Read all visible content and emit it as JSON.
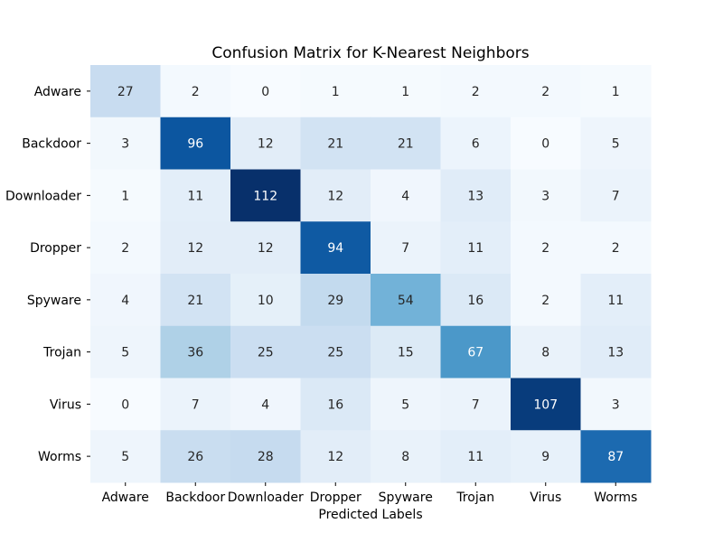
{
  "chart_data": {
    "type": "heatmap",
    "title": "Confusion Matrix for K-Nearest Neighbors",
    "xlabel": "Predicted Labels",
    "ylabel": "",
    "x_categories": [
      "Adware",
      "Backdoor",
      "Downloader",
      "Dropper",
      "Spyware",
      "Trojan",
      "Virus",
      "Worms"
    ],
    "y_categories": [
      "Adware",
      "Backdoor",
      "Downloader",
      "Dropper",
      "Spyware",
      "Trojan",
      "Virus",
      "Worms"
    ],
    "values": [
      [
        27,
        2,
        0,
        1,
        1,
        2,
        2,
        1
      ],
      [
        3,
        96,
        12,
        21,
        21,
        6,
        0,
        5
      ],
      [
        1,
        11,
        112,
        12,
        4,
        13,
        3,
        7
      ],
      [
        2,
        12,
        12,
        94,
        7,
        11,
        2,
        2
      ],
      [
        4,
        21,
        10,
        29,
        54,
        16,
        2,
        11
      ],
      [
        5,
        36,
        25,
        25,
        15,
        67,
        8,
        13
      ],
      [
        0,
        7,
        4,
        16,
        5,
        7,
        107,
        3
      ],
      [
        5,
        26,
        28,
        12,
        8,
        11,
        9,
        87
      ]
    ],
    "colormap": "Blues",
    "vmin": 0,
    "vmax": 112,
    "colorbar": false,
    "annotations": true
  }
}
